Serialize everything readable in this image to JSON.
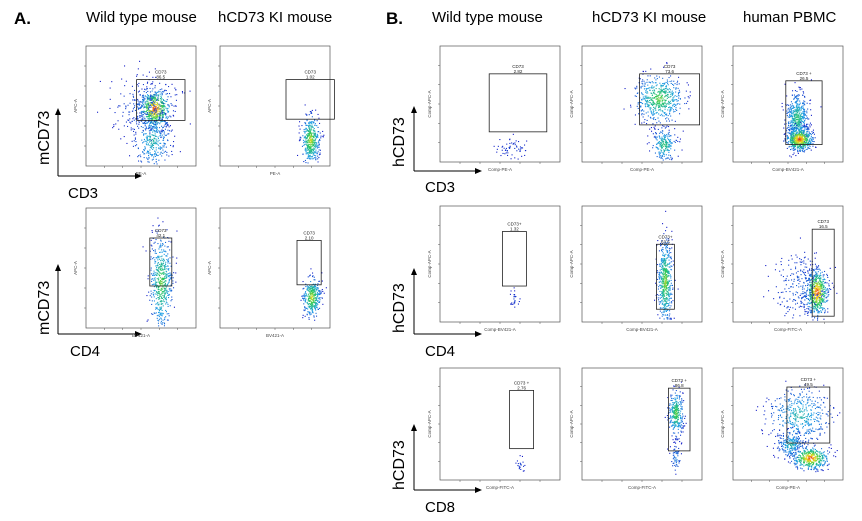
{
  "panel_a": {
    "letter": "A.",
    "columns": [
      "Wild type mouse",
      "hCD73 KI mouse"
    ],
    "row_marker": "mCD73",
    "row_x_markers": [
      "CD3",
      "CD4"
    ]
  },
  "panel_b": {
    "letter": "B.",
    "columns": [
      "Wild type mouse",
      "hCD73 KI mouse",
      "human PBMC"
    ],
    "row_marker": "hCD73",
    "row_x_markers": [
      "CD3",
      "CD4",
      "CD8"
    ]
  },
  "chart_data": [
    {
      "type": "scatter",
      "panel": "A",
      "column": "Wild type mouse",
      "x_channel": "PE-A",
      "y_channel": "APC-A",
      "gate_label": "CD73",
      "gate_value": "86.5"
    },
    {
      "type": "scatter",
      "panel": "A",
      "column": "hCD73 KI mouse",
      "x_channel": "PE-A",
      "y_channel": "APC-A",
      "gate_label": "CD73",
      "gate_value": "1.02"
    },
    {
      "type": "scatter",
      "panel": "A",
      "column": "Wild type mouse",
      "x_channel": "BV421-A",
      "y_channel": "APC-A",
      "gate_label": "CD73",
      "gate_value": "42.1"
    },
    {
      "type": "scatter",
      "panel": "A",
      "column": "hCD73 KI mouse",
      "x_channel": "BV421-A",
      "y_channel": "APC-A",
      "gate_label": "CD73",
      "gate_value": "2.10"
    },
    {
      "type": "scatter",
      "panel": "B",
      "column": "Wild type mouse",
      "x_channel": "Comp-PE-A",
      "y_channel": "Comp-APC-A",
      "gate_label": "CD73",
      "gate_value": "2.82"
    },
    {
      "type": "scatter",
      "panel": "B",
      "column": "hCD73 KI mouse",
      "x_channel": "Comp-PE-A",
      "y_channel": "Comp-APC-A",
      "gate_label": "CD73",
      "gate_value": "73.6"
    },
    {
      "type": "scatter",
      "panel": "B",
      "column": "human PBMC",
      "x_channel": "Comp-BV421-A",
      "y_channel": "Comp-APC-A",
      "gate_label": "CD73 +",
      "gate_value": "26.5"
    },
    {
      "type": "scatter",
      "panel": "B",
      "column": "Wild type mouse",
      "x_channel": "Comp-BV421-A",
      "y_channel": "Comp-APC-A",
      "gate_label": "CD73+",
      "gate_value": "1.32"
    },
    {
      "type": "scatter",
      "panel": "B",
      "column": "hCD73 KI mouse",
      "x_channel": "Comp-BV421-A",
      "y_channel": "Comp-APC-A",
      "gate_label": "CD73+",
      "gate_value": "63.5"
    },
    {
      "type": "scatter",
      "panel": "B",
      "column": "human PBMC",
      "x_channel": "Comp-FITC-A",
      "y_channel": "Comp-APC-A",
      "gate_label": "CD73",
      "gate_value": "16.5"
    },
    {
      "type": "scatter",
      "panel": "B",
      "column": "Wild type mouse",
      "x_channel": "Comp-FITC-A",
      "y_channel": "Comp-APC-A",
      "gate_label": "CD73 +",
      "gate_value": "2.76"
    },
    {
      "type": "scatter",
      "panel": "B",
      "column": "hCD73 KI mouse",
      "x_channel": "Comp-FITC-A",
      "y_channel": "Comp-APC-A",
      "gate_label": "CD73 +",
      "gate_value": "86.8"
    },
    {
      "type": "scatter",
      "panel": "B",
      "column": "human PBMC",
      "x_channel": "Comp-PE-A",
      "y_channel": "Comp-APC-A",
      "gate_label": "CD73 +",
      "gate_value": "49.5"
    }
  ]
}
